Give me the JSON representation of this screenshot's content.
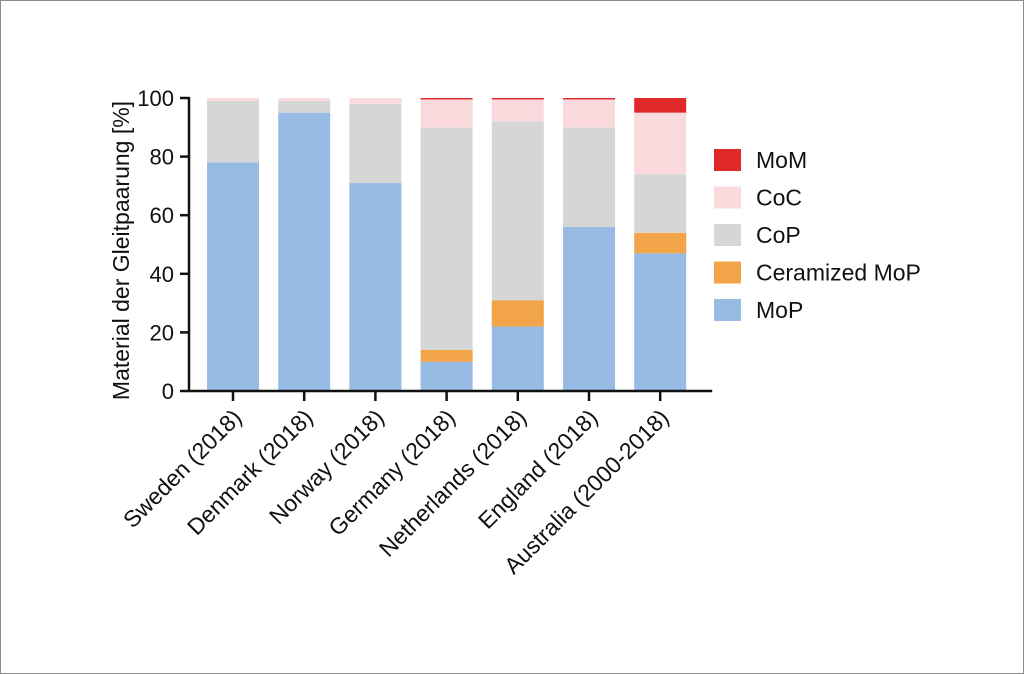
{
  "chart_data": {
    "type": "bar",
    "stacked": true,
    "title": "",
    "xlabel": "",
    "ylabel": "Material der Gleitpaarung [%]",
    "ylim": [
      0,
      100
    ],
    "yticks": [
      "0",
      "20",
      "40",
      "60",
      "80",
      "100"
    ],
    "grid": false,
    "legend_position": "right",
    "categories": [
      "Sweden (2018)",
      "Denmark (2018)",
      "Norway (2018)",
      "Germany (2018)",
      "Netherlands (2018)",
      "England (2018)",
      "Australia (2000-2018)"
    ],
    "series": [
      {
        "name": "MoP",
        "color": "#97bbe4",
        "values": [
          78,
          95,
          71,
          10,
          22,
          56,
          47
        ]
      },
      {
        "name": "Ceramized MoP",
        "color": "#f2a448",
        "values": [
          0,
          0,
          0,
          4,
          9,
          0,
          7
        ]
      },
      {
        "name": "CoP",
        "color": "#d6d6d6",
        "values": [
          21,
          4,
          27,
          76,
          61,
          34,
          20
        ]
      },
      {
        "name": "CoC",
        "color": "#fadadd",
        "values": [
          1,
          1,
          2,
          9.5,
          7.5,
          9.5,
          21
        ]
      },
      {
        "name": "MoM",
        "color": "#e02828",
        "values": [
          0,
          0,
          0,
          0.5,
          0.5,
          0.5,
          5
        ]
      }
    ],
    "legend_order": [
      "MoM",
      "CoC",
      "CoP",
      "Ceramized MoP",
      "MoP"
    ]
  }
}
